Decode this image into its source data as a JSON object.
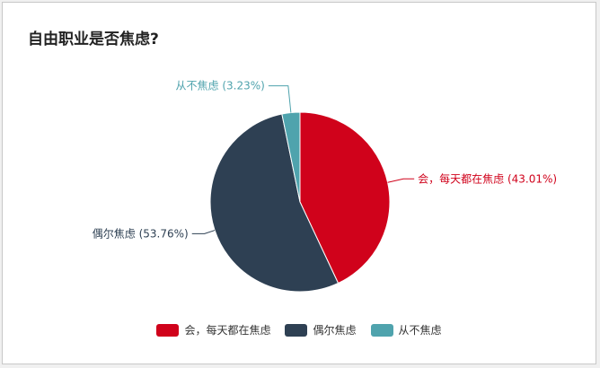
{
  "chart_data": {
    "type": "pie",
    "title": "自由职业是否焦虑?",
    "categories": [
      "会，每天都在焦虑",
      "偶尔焦虑",
      "从不焦虑"
    ],
    "values": [
      43.01,
      53.76,
      3.23
    ],
    "labels": [
      "会，每天都在焦虑 (43.01%)",
      "偶尔焦虑 (53.76%)",
      "从不焦虑 (3.23%)"
    ],
    "colors": [
      "#d0021b",
      "#2e4053",
      "#4fa3ad"
    ],
    "start_angle": "12 o'clock",
    "direction": "clockwise",
    "legend_position": "bottom"
  }
}
